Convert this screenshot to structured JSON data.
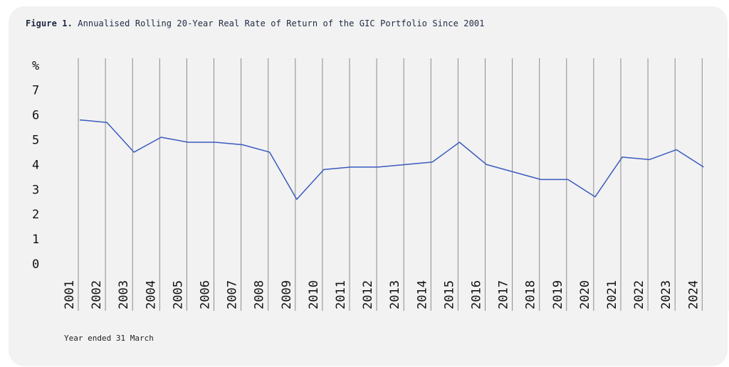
{
  "header": {
    "figure_label": "Figure 1.",
    "title": "Annualised Rolling 20-Year Real Rate of Return of the GIC Portfolio Since 2001"
  },
  "footnote": "Year ended 31 March",
  "colors": {
    "line": "#3a5bbf",
    "grid": "#8c8c8c",
    "background": "#f2f2f2"
  },
  "chart_data": {
    "type": "line",
    "title": "Annualised Rolling 20-Year Real Rate of Return of the GIC Portfolio Since 2001",
    "xlabel": "Year ended 31 March",
    "ylabel": "%",
    "ylim": [
      0,
      8
    ],
    "yticks": [
      0,
      1,
      2,
      3,
      4,
      5,
      6,
      7
    ],
    "y_unit_label": "%",
    "grid": "vertical",
    "categories": [
      "2001",
      "2002",
      "2003",
      "2004",
      "2005",
      "2006",
      "2007",
      "2008",
      "2009",
      "2010",
      "2011",
      "2012",
      "2013",
      "2014",
      "2015",
      "2016",
      "2017",
      "2018",
      "2019",
      "2020",
      "2021",
      "2022",
      "2023",
      "2024"
    ],
    "series": [
      {
        "values": [
          5.8,
          5.7,
          4.5,
          5.1,
          4.9,
          4.9,
          4.8,
          4.5,
          2.6,
          3.8,
          3.9,
          3.9,
          4.0,
          4.1,
          4.9,
          4.0,
          3.7,
          3.4,
          3.4,
          2.7,
          4.3,
          4.2,
          4.6,
          3.9
        ]
      }
    ]
  }
}
